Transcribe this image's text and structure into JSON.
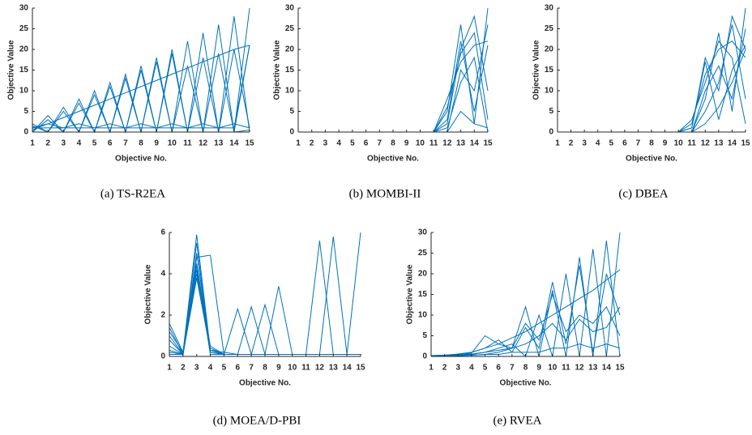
{
  "chart_data": [
    {
      "type": "line",
      "caption": "(a) TS-R2EA",
      "xlabel": "Objective No.",
      "ylabel": "Objective Value",
      "color": "#0072bd",
      "x": [
        1,
        2,
        3,
        4,
        5,
        6,
        7,
        8,
        9,
        10,
        11,
        12,
        13,
        14,
        15
      ],
      "xlim": [
        1,
        15
      ],
      "xticks": [
        1,
        2,
        3,
        4,
        5,
        6,
        7,
        8,
        9,
        10,
        11,
        12,
        13,
        14,
        15
      ],
      "ylim": [
        0,
        30
      ],
      "yticks": [
        0,
        5,
        10,
        15,
        20,
        25,
        30
      ],
      "series": [
        {
          "values": [
            0.5,
            2,
            3.5,
            5,
            6.5,
            8,
            9.5,
            11,
            12.5,
            14,
            15.5,
            17,
            18.5,
            20,
            21
          ]
        },
        {
          "values": [
            0,
            4,
            0,
            8,
            0,
            12,
            0,
            16,
            0,
            20,
            0,
            24,
            0,
            28,
            0
          ]
        },
        {
          "values": [
            2,
            0,
            6,
            0,
            10,
            0,
            14,
            0,
            18,
            0,
            22,
            0,
            26,
            0,
            30
          ]
        },
        {
          "values": [
            1,
            1,
            1,
            1,
            1,
            1,
            1,
            1,
            1,
            1,
            1,
            1,
            1,
            1,
            21
          ]
        },
        {
          "values": [
            0,
            3,
            0,
            7,
            0,
            11,
            0,
            15,
            0,
            19,
            0,
            18,
            0,
            20,
            1
          ]
        },
        {
          "values": [
            1.5,
            0,
            5,
            0,
            9,
            0,
            13,
            0,
            17,
            0,
            16,
            0,
            19,
            0,
            21
          ]
        },
        {
          "values": [
            1,
            2,
            1,
            2,
            1,
            2,
            1,
            2,
            1,
            2,
            1,
            2,
            1,
            2,
            1
          ]
        },
        {
          "values": [
            0,
            0,
            0,
            0,
            0,
            0,
            0,
            0,
            0,
            0,
            0,
            0,
            0,
            0,
            0.5
          ]
        }
      ]
    },
    {
      "type": "line",
      "caption": "(b) MOMBI-II",
      "xlabel": "Objective No.",
      "ylabel": "Objective Value",
      "color": "#0072bd",
      "x": [
        1,
        2,
        3,
        4,
        5,
        6,
        7,
        8,
        9,
        10,
        11,
        12,
        13,
        14,
        15
      ],
      "xlim": [
        1,
        15
      ],
      "xticks": [
        1,
        2,
        3,
        4,
        5,
        6,
        7,
        8,
        9,
        10,
        11,
        12,
        13,
        14,
        15
      ],
      "ylim": [
        0,
        30
      ],
      "yticks": [
        0,
        5,
        10,
        15,
        20,
        25,
        30
      ],
      "series": [
        {
          "values": [
            0,
            0,
            0,
            0,
            0,
            0,
            0,
            0,
            0,
            0,
            0,
            5,
            26,
            2,
            30
          ]
        },
        {
          "values": [
            0,
            0,
            0,
            0,
            0,
            0,
            0,
            0,
            0,
            0,
            0,
            2,
            20,
            28,
            10
          ]
        },
        {
          "values": [
            0,
            0,
            0,
            0,
            0,
            0,
            0,
            0,
            0,
            0,
            0,
            8,
            17,
            21,
            22
          ]
        },
        {
          "values": [
            0,
            0,
            0,
            0,
            0,
            0,
            0,
            0,
            0,
            0,
            0,
            1,
            12,
            18,
            0
          ]
        },
        {
          "values": [
            0,
            0,
            0,
            0,
            0,
            0,
            0,
            0,
            0,
            0,
            0,
            3,
            22,
            5,
            21
          ]
        },
        {
          "values": [
            0,
            0,
            0,
            0,
            0,
            0,
            0,
            0,
            0,
            0,
            0,
            0,
            15,
            10,
            26
          ]
        },
        {
          "values": [
            0,
            0,
            0,
            0,
            0,
            0,
            0,
            0,
            0,
            0,
            0,
            6,
            19,
            24,
            3
          ]
        },
        {
          "values": [
            0,
            0,
            0,
            0,
            0,
            0,
            0,
            0,
            0,
            0,
            0,
            0,
            5,
            2,
            1
          ]
        }
      ]
    },
    {
      "type": "line",
      "caption": "(c) DBEA",
      "xlabel": "Objective No.",
      "ylabel": "Objective Value",
      "color": "#0072bd",
      "x": [
        1,
        2,
        3,
        4,
        5,
        6,
        7,
        8,
        9,
        10,
        11,
        12,
        13,
        14,
        15
      ],
      "xlim": [
        1,
        15
      ],
      "xticks": [
        1,
        2,
        3,
        4,
        5,
        6,
        7,
        8,
        9,
        10,
        11,
        12,
        13,
        14,
        15
      ],
      "ylim": [
        0,
        30
      ],
      "yticks": [
        0,
        5,
        10,
        15,
        20,
        25,
        30
      ],
      "series": [
        {
          "values": [
            0,
            0,
            0,
            0,
            0,
            0,
            0,
            0,
            0,
            0,
            1,
            18,
            10,
            28,
            20
          ]
        },
        {
          "values": [
            0,
            0,
            0,
            0,
            0,
            0,
            0,
            0,
            0,
            0,
            0,
            8,
            24,
            5,
            30
          ]
        },
        {
          "values": [
            0,
            0,
            0,
            0,
            0,
            0,
            0,
            0,
            0,
            0,
            2,
            14,
            20,
            22,
            18
          ]
        },
        {
          "values": [
            0,
            0,
            0,
            0,
            0,
            0,
            0,
            0,
            0,
            0,
            0,
            5,
            12,
            26,
            8
          ]
        },
        {
          "values": [
            0,
            0,
            0,
            0,
            0,
            0,
            0,
            0,
            0,
            0,
            1,
            17,
            3,
            15,
            21
          ]
        },
        {
          "values": [
            0,
            0,
            0,
            0,
            0,
            0,
            0,
            0,
            0,
            0,
            0,
            10,
            16,
            8,
            25
          ]
        },
        {
          "values": [
            0,
            0,
            0,
            0,
            0,
            0,
            0,
            0,
            0,
            0,
            0,
            2,
            6,
            12,
            20
          ]
        },
        {
          "values": [
            0,
            0,
            0,
            0,
            0,
            0,
            0,
            0,
            0,
            0,
            3,
            12,
            22,
            18,
            2
          ]
        }
      ]
    },
    {
      "type": "line",
      "caption": "(d) MOEA/D-PBI",
      "xlabel": "Objective No.",
      "ylabel": "Objective Value",
      "color": "#0072bd",
      "x": [
        1,
        2,
        3,
        4,
        5,
        6,
        7,
        8,
        9,
        10,
        11,
        12,
        13,
        14,
        15
      ],
      "xlim": [
        1,
        15
      ],
      "xticks": [
        1,
        2,
        3,
        4,
        5,
        6,
        7,
        8,
        9,
        10,
        11,
        12,
        13,
        14,
        15
      ],
      "ylim": [
        0,
        6
      ],
      "yticks": [
        0,
        2,
        4,
        6
      ],
      "series": [
        {
          "values": [
            1.6,
            0.2,
            5.9,
            0.3,
            0.1,
            0.1,
            0.1,
            0.1,
            0.1,
            0.1,
            0.1,
            0.1,
            0.1,
            0.1,
            0.1
          ]
        },
        {
          "values": [
            1,
            0.1,
            4.8,
            4.9,
            0.1,
            0.1,
            0.1,
            0.1,
            0.1,
            0.1,
            0.1,
            0.1,
            0.1,
            0.1,
            0.1
          ]
        },
        {
          "values": [
            0.5,
            0.1,
            4.2,
            0.5,
            0.1,
            2.3,
            0.1,
            0.1,
            0.1,
            0.1,
            0.1,
            0.1,
            0.1,
            0.1,
            0.1
          ]
        },
        {
          "values": [
            1.2,
            0.2,
            5.5,
            0.2,
            0.1,
            0.1,
            2.4,
            0.1,
            0.1,
            0.1,
            0.1,
            0.1,
            0.1,
            0.1,
            0.1
          ]
        },
        {
          "values": [
            0.8,
            0.1,
            4.5,
            0.4,
            0.1,
            0.1,
            0.1,
            2.5,
            0.1,
            0.1,
            0.1,
            0.1,
            0.1,
            0.1,
            0.1
          ]
        },
        {
          "values": [
            1.4,
            0.1,
            5,
            0.3,
            0.2,
            0.1,
            0.1,
            0.1,
            3.4,
            0.1,
            0.1,
            0.1,
            0.1,
            0.1,
            0.1
          ]
        },
        {
          "values": [
            0.3,
            0.1,
            3.8,
            0.3,
            0.1,
            0.1,
            0.1,
            0.1,
            0.1,
            0.1,
            0.1,
            5.6,
            0.1,
            0.1,
            0.1
          ]
        },
        {
          "values": [
            0.2,
            0.1,
            4,
            0.2,
            0.1,
            0.1,
            0.1,
            0.1,
            0.1,
            0.1,
            0.1,
            0.1,
            5.8,
            0.1,
            0.1
          ]
        },
        {
          "values": [
            0.1,
            0.1,
            4.4,
            0.1,
            0.1,
            0.1,
            0.1,
            0.1,
            0.1,
            0.1,
            0.1,
            0.1,
            0.1,
            0.1,
            6
          ]
        }
      ]
    },
    {
      "type": "line",
      "caption": "(e) RVEA",
      "xlabel": "Objective No.",
      "ylabel": "Objective Value",
      "color": "#0072bd",
      "x": [
        1,
        2,
        3,
        4,
        5,
        6,
        7,
        8,
        9,
        10,
        11,
        12,
        13,
        14,
        15
      ],
      "xlim": [
        1,
        15
      ],
      "xticks": [
        1,
        2,
        3,
        4,
        5,
        6,
        7,
        8,
        9,
        10,
        11,
        12,
        13,
        14,
        15
      ],
      "ylim": [
        0,
        30
      ],
      "yticks": [
        0,
        5,
        10,
        15,
        20,
        25,
        30
      ],
      "series": [
        {
          "values": [
            0.2,
            0.3,
            0.5,
            1,
            2,
            3,
            4.5,
            6,
            8,
            10,
            12,
            14,
            16,
            18.5,
            21
          ]
        },
        {
          "values": [
            0.1,
            0.1,
            0.2,
            0.3,
            0.5,
            1,
            2,
            12,
            0,
            16,
            0,
            24,
            0,
            28,
            0
          ]
        },
        {
          "values": [
            0.2,
            0.2,
            0.3,
            0.5,
            1,
            2,
            3,
            0,
            10,
            0,
            20,
            0,
            26,
            0,
            30
          ]
        },
        {
          "values": [
            0.1,
            0.2,
            0.4,
            0.8,
            5,
            3,
            2,
            8,
            4,
            15,
            6,
            10,
            8,
            12,
            5
          ]
        },
        {
          "values": [
            0.2,
            0.3,
            0.6,
            1,
            2,
            4,
            1,
            7,
            2,
            18,
            3,
            22,
            1,
            20,
            10
          ]
        },
        {
          "values": [
            0.1,
            0.1,
            0.2,
            0.3,
            0.5,
            0.5,
            1,
            1,
            1,
            2,
            2,
            3,
            2,
            3,
            2
          ]
        },
        {
          "values": [
            0.2,
            0.2,
            0.3,
            0.6,
            1,
            1.5,
            2,
            3,
            5,
            8,
            4,
            9,
            6,
            7,
            12
          ]
        }
      ]
    }
  ]
}
